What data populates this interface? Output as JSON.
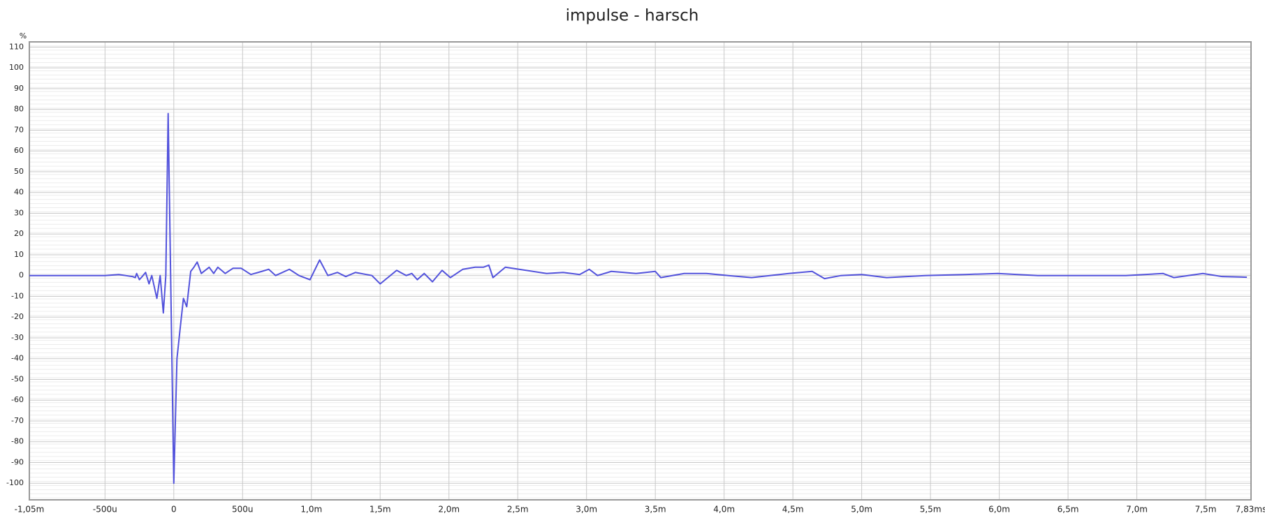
{
  "chart_data": {
    "type": "line",
    "title": "impulse - harsch",
    "y_label": "%",
    "x": [
      -1.05,
      -0.9,
      -0.75,
      -0.6,
      -0.5,
      -0.4,
      -0.3,
      -0.28,
      -0.27,
      -0.25,
      -0.23,
      -0.205,
      -0.18,
      -0.16,
      -0.123,
      -0.099,
      -0.076,
      -0.058,
      -0.041,
      -0.023,
      0,
      0.023,
      0.047,
      0.07,
      0.094,
      0.123,
      0.146,
      0.17,
      0.2,
      0.257,
      0.29,
      0.32,
      0.374,
      0.43,
      0.49,
      0.56,
      0.64,
      0.69,
      0.74,
      0.84,
      0.91,
      0.99,
      1.06,
      1.12,
      1.19,
      1.25,
      1.32,
      1.44,
      1.5,
      1.62,
      1.69,
      1.73,
      1.77,
      1.82,
      1.88,
      1.95,
      2.01,
      2.1,
      2.19,
      2.25,
      2.29,
      2.32,
      2.41,
      2.51,
      2.71,
      2.83,
      2.95,
      3.02,
      3.08,
      3.18,
      3.36,
      3.5,
      3.54,
      3.71,
      3.87,
      4.03,
      4.2,
      4.47,
      4.64,
      4.73,
      4.85,
      5.0,
      5.18,
      5.46,
      5.75,
      5.99,
      6.28,
      6.63,
      6.92,
      7.19,
      7.27,
      7.48,
      7.62,
      7.8
    ],
    "series": [
      {
        "name": "impulse",
        "color": "#5252dc",
        "values": [
          0,
          0,
          0,
          0,
          0,
          0.5,
          -0.5,
          -1,
          1,
          -2,
          -0.5,
          1.5,
          -4,
          0,
          -11,
          0,
          -18,
          0,
          78,
          0,
          -100,
          -40,
          -25,
          -11,
          -15,
          2,
          4,
          6.5,
          1,
          4,
          1,
          4,
          1,
          3.5,
          3.5,
          0.5,
          2,
          3,
          0,
          3,
          0,
          -2,
          7.5,
          0,
          1.5,
          -0.5,
          1.5,
          0,
          -4,
          2.5,
          0,
          1,
          -2,
          1,
          -3,
          2.5,
          -1,
          3,
          4,
          4,
          5,
          -1,
          4,
          3,
          1,
          1.5,
          0.5,
          3,
          0,
          2,
          1,
          2,
          -1,
          1,
          1,
          0,
          -1,
          1,
          2,
          -1.5,
          0,
          0.5,
          -1,
          0,
          0.5,
          1,
          0,
          0,
          0,
          1,
          -1,
          1,
          -0.5,
          -0.8
        ]
      }
    ],
    "xlim": [
      -1.05,
      7.83
    ],
    "ylim": [
      -108,
      112.5
    ],
    "xticks": [
      {
        "value": -1.05,
        "label": "-1,05m"
      },
      {
        "value": -0.5,
        "label": "-500u"
      },
      0,
      {
        "value": 0.5,
        "label": "500u"
      },
      {
        "value": 1.0,
        "label": "1,0m"
      },
      {
        "value": 1.5,
        "label": "1,5m"
      },
      {
        "value": 2.0,
        "label": "2,0m"
      },
      {
        "value": 2.5,
        "label": "2,5m"
      },
      {
        "value": 3.0,
        "label": "3,0m"
      },
      {
        "value": 3.5,
        "label": "3,5m"
      },
      {
        "value": 4.0,
        "label": "4,0m"
      },
      {
        "value": 4.5,
        "label": "4,5m"
      },
      {
        "value": 5.0,
        "label": "5,0m"
      },
      {
        "value": 5.5,
        "label": "5,5m"
      },
      {
        "value": 6.0,
        "label": "6,0m"
      },
      {
        "value": 6.5,
        "label": "6,5m"
      },
      {
        "value": 7.0,
        "label": "7,0m"
      },
      {
        "value": 7.5,
        "label": "7,5m"
      },
      {
        "value": 7.83,
        "label": "7,83ms"
      }
    ],
    "yticks": [
      -100,
      -90,
      -80,
      -70,
      -60,
      -50,
      -40,
      -30,
      -20,
      -10,
      0,
      10,
      20,
      30,
      40,
      50,
      60,
      70,
      80,
      90,
      100,
      110
    ],
    "grid": true
  }
}
